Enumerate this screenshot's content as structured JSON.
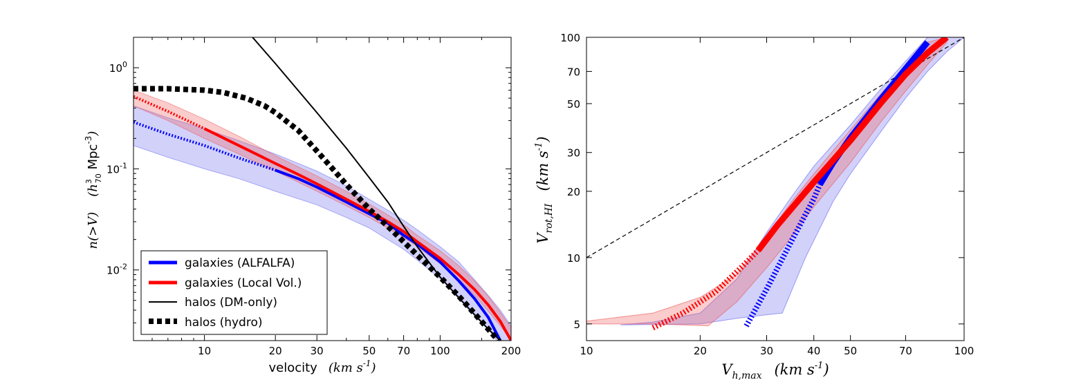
{
  "colors": {
    "alfalfa": "#0000ff",
    "local_vol": "#ff0000",
    "dm_only": "#000000",
    "hydro": "#000000",
    "band_blue": "#6666ee",
    "band_red": "#ee5555"
  },
  "chart_data": [
    {
      "type": "line",
      "panel": "left",
      "xscale": "log",
      "yscale": "log",
      "xlim": [
        5,
        200
      ],
      "ylim": [
        0.002,
        2.0
      ],
      "xticks": [
        10,
        20,
        30,
        50,
        70,
        100,
        200
      ],
      "xtick_labels": [
        "10",
        "20",
        "30",
        "50",
        "70",
        "100",
        "200"
      ],
      "yticks": [
        0.01,
        0.1,
        1.0
      ],
      "ytick_labels": [
        "10",
        "10",
        "10"
      ],
      "ytick_exponents": [
        "-2",
        "-1",
        "0"
      ],
      "xlabel": "velocity",
      "xlabel_units": "(km s",
      "xlabel_units_exp": "-1",
      "xlabel_units_close": ")",
      "ylabel": "n(>V)",
      "ylabel_units_open": "(h",
      "ylabel_units_sup": "3",
      "ylabel_units_sub": "70",
      "ylabel_units_text": " Mpc",
      "ylabel_units_exp": "-3",
      "ylabel_units_close": ")",
      "legend_position": "lower-left",
      "legend": [
        {
          "label": "galaxies (ALFALFA)",
          "style": "solid",
          "color": "#0000ff"
        },
        {
          "label": "galaxies (Local Vol.)",
          "style": "solid",
          "color": "#ff0000"
        },
        {
          "label": "halos (DM-only)",
          "style": "solid-thin",
          "color": "#000000"
        },
        {
          "label": "halos (hydro)",
          "style": "dotted-thick",
          "color": "#000000"
        }
      ],
      "series": [
        {
          "name": "galaxies (ALFALFA)",
          "color": "#0000ff",
          "dotted_below_x": 20,
          "x": [
            5,
            7,
            10,
            14,
            20,
            25,
            30,
            40,
            50,
            60,
            70,
            80,
            100,
            120,
            140,
            160,
            180
          ],
          "y": [
            0.29,
            0.22,
            0.17,
            0.128,
            0.097,
            0.08,
            0.066,
            0.047,
            0.036,
            0.029,
            0.022,
            0.018,
            0.012,
            0.0078,
            0.0052,
            0.0034,
            0.002
          ]
        },
        {
          "name": "galaxies (Local Vol.)",
          "color": "#ff0000",
          "dotted_below_x": 10,
          "x": [
            5,
            7,
            10,
            14,
            20,
            25,
            30,
            40,
            50,
            60,
            70,
            80,
            100,
            120,
            140,
            160,
            180,
            200
          ],
          "y": [
            0.52,
            0.37,
            0.25,
            0.17,
            0.113,
            0.088,
            0.071,
            0.05,
            0.038,
            0.03,
            0.024,
            0.019,
            0.013,
            0.009,
            0.0064,
            0.0045,
            0.0031,
            0.002
          ]
        },
        {
          "name": "halos (DM-only)",
          "color": "#000000",
          "x": [
            16,
            20,
            30,
            40,
            50,
            60,
            70,
            80,
            100,
            120,
            140,
            160,
            180
          ],
          "y": [
            2.0,
            1.1,
            0.36,
            0.16,
            0.082,
            0.047,
            0.027,
            0.017,
            0.0085,
            0.0053,
            0.0036,
            0.0026,
            0.002
          ]
        },
        {
          "name": "halos (hydro)",
          "color": "#000000",
          "x": [
            5,
            7,
            10,
            12,
            15,
            18,
            20,
            25,
            30,
            35,
            40,
            50,
            60,
            70,
            80,
            100,
            120,
            140,
            160,
            180
          ],
          "y": [
            0.62,
            0.62,
            0.6,
            0.57,
            0.5,
            0.42,
            0.36,
            0.24,
            0.15,
            0.1,
            0.07,
            0.04,
            0.027,
            0.019,
            0.014,
            0.0085,
            0.0055,
            0.0037,
            0.0026,
            0.0019
          ]
        }
      ],
      "bands": [
        {
          "name": "ALFALFA uncertainty",
          "color": "#6666ee",
          "x": [
            5,
            7,
            10,
            14,
            20,
            30,
            40,
            50,
            60,
            70,
            80,
            100,
            120,
            140,
            160,
            180,
            200
          ],
          "y_low": [
            0.17,
            0.13,
            0.1,
            0.08,
            0.06,
            0.044,
            0.033,
            0.026,
            0.02,
            0.016,
            0.0125,
            0.0082,
            0.0055,
            0.0037,
            0.0026,
            0.0018,
            0.0013
          ],
          "y_high": [
            0.42,
            0.32,
            0.25,
            0.19,
            0.14,
            0.095,
            0.068,
            0.05,
            0.039,
            0.031,
            0.025,
            0.017,
            0.012,
            0.008,
            0.0056,
            0.004,
            0.0028
          ]
        },
        {
          "name": "Local Vol. uncertainty",
          "color": "#ee5555",
          "x": [
            5,
            7,
            10,
            14,
            20,
            30,
            40,
            50,
            60,
            70,
            80,
            100,
            120,
            140,
            160,
            180,
            200
          ],
          "y_low": [
            0.42,
            0.3,
            0.2,
            0.14,
            0.095,
            0.06,
            0.043,
            0.033,
            0.026,
            0.021,
            0.017,
            0.0115,
            0.008,
            0.0056,
            0.0039,
            0.0028,
            0.002
          ],
          "y_high": [
            0.6,
            0.45,
            0.31,
            0.21,
            0.135,
            0.085,
            0.06,
            0.045,
            0.035,
            0.028,
            0.022,
            0.0155,
            0.011,
            0.0078,
            0.0055,
            0.0038,
            0.0027
          ]
        }
      ]
    },
    {
      "type": "line",
      "panel": "right",
      "xscale": "log",
      "yscale": "log",
      "xlim": [
        10,
        100
      ],
      "ylim": [
        4.2,
        100
      ],
      "xticks": [
        10,
        20,
        30,
        40,
        50,
        70,
        100
      ],
      "xtick_labels": [
        "10",
        "20",
        "30",
        "40",
        "50",
        "70",
        "100"
      ],
      "yticks": [
        5,
        10,
        20,
        30,
        50,
        70,
        100
      ],
      "ytick_labels": [
        "5",
        "10",
        "20",
        "30",
        "50",
        "70",
        "100"
      ],
      "xlabel_main": "V",
      "xlabel_sub": "h,max",
      "xlabel_units": "(km s",
      "xlabel_units_exp": "-1",
      "xlabel_units_close": ")",
      "ylabel_main": "V",
      "ylabel_sub": "rot,HI",
      "ylabel_units": "(km s",
      "ylabel_units_exp": "-1",
      "ylabel_units_close": ")",
      "series": [
        {
          "name": "one-to-one",
          "color": "#000000",
          "style": "dashed",
          "x": [
            10,
            100
          ],
          "y": [
            10,
            100
          ]
        },
        {
          "name": "ALFALFA",
          "color": "#0000ff",
          "dotted_below_x": 41.5,
          "x": [
            26.5,
            30,
            35,
            40,
            41.5,
            45,
            50,
            60,
            70,
            80
          ],
          "y": [
            4.9,
            7.2,
            12,
            18.5,
            21.5,
            27,
            35,
            52,
            72,
            95
          ]
        },
        {
          "name": "Local Vol.",
          "color": "#ff0000",
          "dotted_below_x": 28.5,
          "x": [
            15,
            18,
            22,
            26,
            28.5,
            32,
            40,
            50,
            60,
            70,
            80,
            90
          ],
          "y": [
            4.8,
            5.6,
            7,
            9.2,
            10.8,
            14,
            22,
            34,
            50,
            68,
            85,
            100
          ]
        }
      ],
      "bands": [
        {
          "name": "ALFALFA uncertainty",
          "color": "#6666ee",
          "x_upper": [
            12.3,
            15,
            20,
            25,
            30,
            35,
            40,
            50,
            60,
            70,
            80,
            90,
            100
          ],
          "y_upper": [
            4.95,
            5.1,
            5.6,
            8,
            13,
            19,
            26,
            40,
            58,
            78,
            100,
            100,
            100
          ],
          "x_lower": [
            12.3,
            20,
            25,
            30,
            33,
            38,
            45,
            50,
            60,
            70,
            80,
            90,
            100
          ],
          "y_lower": [
            4.95,
            5,
            5.3,
            5.5,
            5.6,
            10,
            18,
            24,
            37,
            53,
            70,
            86,
            100
          ]
        },
        {
          "name": "Local Vol. uncertainty",
          "color": "#ee5555",
          "x_upper": [
            10,
            15,
            20,
            25,
            30,
            35,
            40,
            50,
            60,
            70,
            80,
            90
          ],
          "y_upper": [
            5.15,
            5.6,
            6.6,
            8.4,
            12.5,
            18,
            24,
            38,
            55,
            74,
            95,
            100
          ],
          "x_lower": [
            10,
            15,
            21,
            25,
            30,
            35,
            40,
            50,
            60,
            70,
            80,
            90
          ],
          "y_lower": [
            5.0,
            5.0,
            4.9,
            6.3,
            9,
            12.5,
            17,
            27,
            41,
            57,
            75,
            95
          ]
        }
      ]
    }
  ]
}
